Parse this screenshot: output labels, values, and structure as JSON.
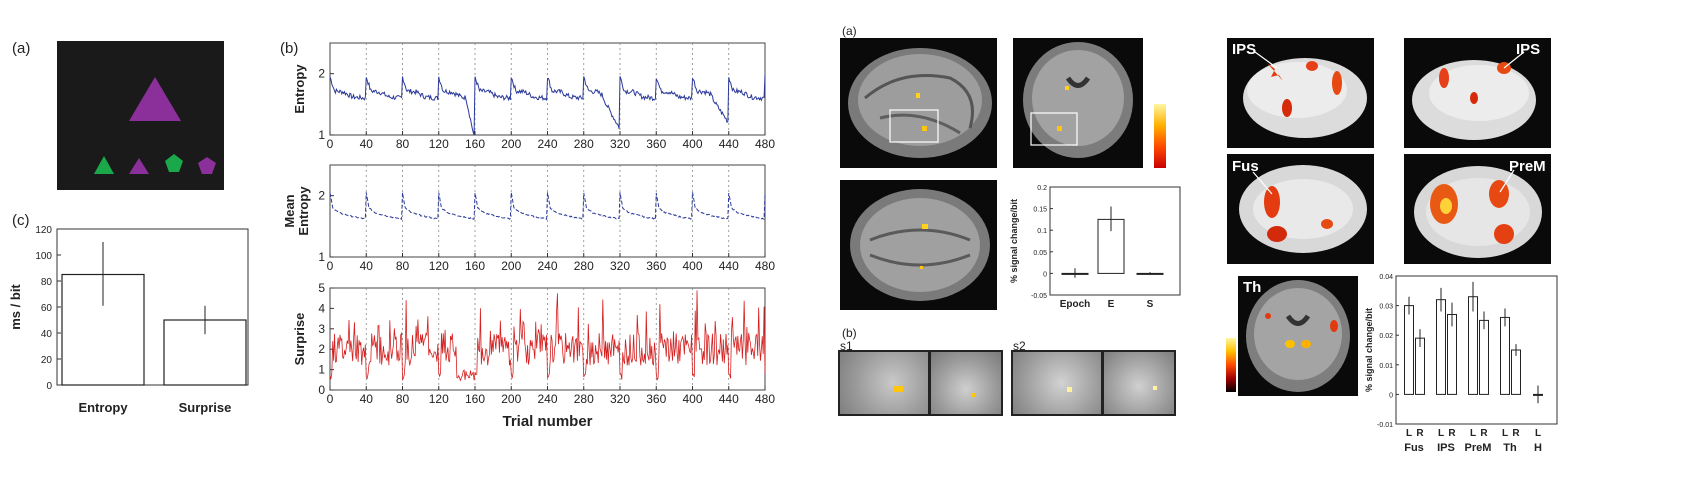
{
  "figure_left": {
    "panel_a": {
      "label": "(a)"
    },
    "panel_b": {
      "label": "(b)"
    },
    "panel_c": {
      "label": "(c)"
    }
  },
  "figure_right": {
    "panel_a": {
      "label": "(a)"
    },
    "panel_b": {
      "label": "(b)"
    },
    "insets": {
      "s1": "s1",
      "s2": "s2"
    },
    "surface_labels": {
      "ips_left": "IPS",
      "ips_right": "IPS",
      "fus": "Fus",
      "prem": "PreM",
      "th": "Th"
    }
  },
  "colors": {
    "entropy_line": "#2b3a9a",
    "surprise_line": "#d42020",
    "triangle_purple": "#8b2f9a",
    "shape_green": "#1aa84a",
    "stimulus_bg": "#1a1a1a"
  },
  "chart_data": [
    {
      "id": "bar_ms_per_bit",
      "type": "bar",
      "categories": [
        "Entropy",
        "Surprise"
      ],
      "values": [
        85,
        50
      ],
      "errors": [
        [
          61,
          110
        ],
        [
          39,
          61
        ]
      ],
      "ylabel": "ms / bit",
      "ylim": [
        0,
        120
      ],
      "yticks": [
        "0",
        "20",
        "40",
        "60",
        "80",
        "100",
        "120"
      ]
    },
    {
      "id": "entropy_series",
      "type": "line",
      "ylabel": "Entropy",
      "ylim": [
        1,
        2.5
      ],
      "yticks": [
        "1",
        "2"
      ],
      "xlim": [
        0,
        480
      ],
      "xticks": [
        "0",
        "40",
        "80",
        "120",
        "160",
        "200",
        "240",
        "280",
        "320",
        "360",
        "400",
        "440",
        "480"
      ],
      "block_starts": [
        0,
        40,
        80,
        120,
        160,
        200,
        240,
        280,
        320,
        360,
        400,
        440
      ],
      "block_profile": [
        [
          0,
          1.95
        ],
        [
          5,
          1.72
        ],
        [
          15,
          1.7
        ],
        [
          25,
          1.62
        ],
        [
          39,
          1.6
        ]
      ]
    },
    {
      "id": "mean_entropy_series",
      "type": "line",
      "ylabel": "Mean Entropy",
      "ylim": [
        1,
        2.5
      ],
      "yticks": [
        "1",
        "2"
      ],
      "xlim": [
        0,
        480
      ],
      "xticks": [
        "0",
        "40",
        "80",
        "120",
        "160",
        "200",
        "240",
        "280",
        "320",
        "360",
        "400",
        "440",
        "480"
      ],
      "block_profile": [
        [
          0,
          2.05
        ],
        [
          3,
          1.8
        ],
        [
          10,
          1.72
        ],
        [
          25,
          1.66
        ],
        [
          39,
          1.62
        ]
      ]
    },
    {
      "id": "surprise_series",
      "type": "line",
      "ylabel": "Surprise",
      "xlabel": "Trial number",
      "ylim": [
        0,
        5
      ],
      "yticks": [
        "0",
        "1",
        "2",
        "3",
        "4",
        "5"
      ],
      "xlim": [
        0,
        480
      ],
      "xticks": [
        "0",
        "40",
        "80",
        "120",
        "160",
        "200",
        "240",
        "280",
        "320",
        "360",
        "400",
        "440",
        "480"
      ]
    },
    {
      "id": "signal_change_epoch",
      "type": "bar",
      "categories": [
        "Epoch",
        "E",
        "S"
      ],
      "values": [
        0.0,
        0.125,
        0.0
      ],
      "errors": [
        [
          -0.01,
          0.012
        ],
        [
          0.098,
          0.155
        ],
        [
          -0.003,
          0.003
        ]
      ],
      "ylabel": "% signal change/bit",
      "ylim": [
        -0.05,
        0.2
      ],
      "yticks": [
        "-0.05",
        "0",
        "0.05",
        "0.1",
        "0.15",
        "0.2"
      ]
    },
    {
      "id": "signal_change_regions",
      "type": "bar",
      "categories": [
        "L",
        "R",
        "L",
        "R",
        "L",
        "R",
        "L",
        "R",
        "L"
      ],
      "groups": [
        "Fus",
        "IPS",
        "PreM",
        "Th",
        "H"
      ],
      "values": [
        0.03,
        0.019,
        0.032,
        0.027,
        0.033,
        0.025,
        0.026,
        0.015,
        0.0
      ],
      "errors": [
        [
          0.027,
          0.033
        ],
        [
          0.016,
          0.022
        ],
        [
          0.028,
          0.036
        ],
        [
          0.023,
          0.031
        ],
        [
          0.028,
          0.038
        ],
        [
          0.022,
          0.028
        ],
        [
          0.023,
          0.029
        ],
        [
          0.013,
          0.017
        ],
        [
          -0.003,
          0.003
        ]
      ],
      "ylabel": "% signal change/bit",
      "ylim": [
        -0.01,
        0.04
      ],
      "yticks": [
        "-0.01",
        "0",
        "0.01",
        "0.02",
        "0.03",
        "0.04"
      ]
    }
  ]
}
